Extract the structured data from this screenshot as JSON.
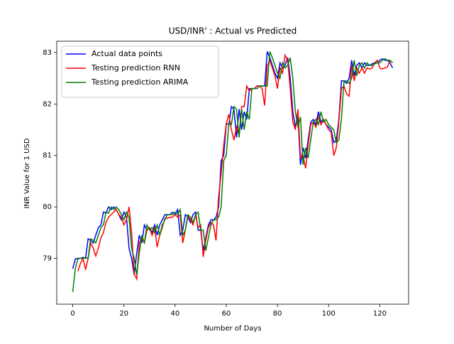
{
  "chart_data": {
    "type": "line",
    "title": "USD/INR' : Actual vs Predicted",
    "x_label": "Number of Days",
    "y_label": "INR Value for 1 USD",
    "x": [
      0,
      1,
      2,
      3,
      4,
      5,
      6,
      7,
      8,
      9,
      10,
      11,
      12,
      13,
      14,
      15,
      16,
      17,
      18,
      19,
      20,
      21,
      22,
      23,
      24,
      25,
      26,
      27,
      28,
      29,
      30,
      31,
      32,
      33,
      34,
      35,
      36,
      37,
      38,
      39,
      40,
      41,
      42,
      43,
      44,
      45,
      46,
      47,
      48,
      49,
      50,
      51,
      52,
      53,
      54,
      55,
      56,
      57,
      58,
      59,
      60,
      61,
      62,
      63,
      64,
      65,
      66,
      67,
      68,
      69,
      70,
      71,
      72,
      73,
      74,
      75,
      76,
      77,
      78,
      79,
      80,
      81,
      82,
      83,
      84,
      85,
      86,
      87,
      88,
      89,
      90,
      91,
      92,
      93,
      94,
      95,
      96,
      97,
      98,
      99,
      100,
      101,
      102,
      103,
      104,
      105,
      106,
      107,
      108,
      109,
      110,
      111,
      112,
      113,
      114,
      115,
      116,
      117,
      118,
      119,
      120,
      121,
      122,
      123,
      124,
      125
    ],
    "series": [
      {
        "name": "Actual data points",
        "color": "#0000ff",
        "values": [
          78.8,
          78.99,
          79.0,
          79.0,
          79.02,
          79.0,
          79.38,
          79.35,
          79.3,
          79.45,
          79.6,
          79.65,
          79.9,
          79.88,
          80.0,
          79.95,
          80.0,
          79.95,
          79.85,
          79.75,
          79.9,
          79.8,
          79.2,
          79.0,
          78.68,
          79.1,
          79.45,
          79.3,
          79.65,
          79.55,
          79.6,
          79.5,
          79.65,
          79.45,
          79.65,
          79.75,
          79.85,
          79.85,
          79.85,
          79.9,
          79.85,
          79.95,
          79.45,
          79.55,
          79.85,
          79.8,
          79.7,
          79.85,
          79.9,
          79.55,
          79.55,
          79.15,
          79.4,
          79.65,
          79.75,
          79.75,
          79.8,
          80.0,
          80.9,
          81.0,
          81.62,
          81.6,
          81.95,
          81.9,
          81.35,
          81.9,
          81.5,
          81.85,
          81.7,
          82.3,
          82.3,
          82.3,
          82.35,
          82.35,
          82.35,
          82.35,
          83.02,
          82.9,
          82.75,
          82.6,
          82.5,
          82.8,
          82.7,
          82.75,
          82.9,
          82.5,
          81.85,
          81.55,
          81.75,
          80.82,
          81.15,
          80.95,
          81.3,
          81.65,
          81.7,
          81.6,
          81.85,
          81.65,
          81.7,
          81.6,
          81.55,
          81.5,
          81.25,
          81.3,
          81.7,
          82.45,
          82.45,
          82.4,
          82.5,
          82.85,
          82.55,
          82.75,
          82.8,
          82.7,
          82.8,
          82.75,
          82.75,
          82.78,
          82.8,
          82.8,
          82.85,
          82.88,
          82.85,
          82.85,
          82.8,
          82.7
        ]
      },
      {
        "name": "Testing prediction RNN",
        "color": "#ff0000",
        "values": [
          null,
          null,
          78.75,
          78.9,
          79.0,
          78.78,
          79.0,
          79.3,
          79.2,
          79.05,
          79.2,
          79.4,
          79.5,
          79.7,
          79.8,
          79.85,
          79.9,
          79.95,
          79.85,
          79.8,
          79.65,
          79.75,
          80.0,
          79.5,
          78.7,
          78.6,
          79.3,
          79.4,
          79.3,
          79.55,
          79.6,
          79.45,
          79.6,
          79.22,
          79.45,
          79.6,
          79.78,
          79.78,
          79.8,
          79.8,
          79.85,
          79.8,
          79.85,
          79.3,
          79.55,
          79.82,
          79.75,
          79.65,
          79.85,
          79.6,
          79.65,
          79.03,
          79.35,
          79.6,
          79.7,
          79.65,
          79.35,
          80.2,
          80.65,
          81.2,
          81.62,
          81.8,
          81.5,
          81.3,
          81.55,
          81.4,
          81.95,
          81.95,
          82.35,
          82.25,
          82.3,
          82.3,
          82.35,
          82.35,
          82.3,
          81.97,
          82.75,
          82.85,
          82.7,
          82.55,
          82.3,
          82.7,
          82.6,
          82.95,
          82.85,
          82.3,
          81.65,
          81.5,
          81.9,
          80.95,
          81.0,
          80.75,
          81.2,
          81.6,
          81.65,
          81.55,
          81.75,
          81.6,
          81.7,
          81.6,
          81.5,
          81.45,
          81.0,
          81.15,
          81.65,
          82.3,
          82.35,
          82.2,
          82.15,
          82.75,
          82.45,
          82.7,
          82.6,
          82.7,
          82.6,
          82.7,
          82.68,
          82.7,
          82.8,
          82.85,
          82.7,
          82.68,
          82.7,
          82.72,
          82.85,
          null
        ]
      },
      {
        "name": "Testing prediction ARIMA",
        "color": "#008000",
        "values": [
          78.35,
          78.8,
          78.99,
          79.0,
          79.0,
          79.02,
          79.0,
          79.38,
          79.35,
          79.3,
          79.45,
          79.6,
          79.65,
          79.9,
          79.88,
          80.0,
          79.95,
          80.0,
          79.95,
          79.85,
          79.75,
          79.9,
          79.8,
          79.2,
          79.0,
          78.68,
          79.1,
          79.45,
          79.3,
          79.65,
          79.55,
          79.6,
          79.5,
          79.65,
          79.45,
          79.65,
          79.75,
          79.85,
          79.85,
          79.85,
          79.9,
          79.85,
          79.95,
          79.45,
          79.55,
          79.85,
          79.8,
          79.7,
          79.85,
          79.9,
          79.55,
          79.55,
          79.15,
          79.4,
          79.65,
          79.75,
          79.75,
          79.8,
          80.0,
          80.9,
          81.0,
          81.62,
          81.6,
          81.95,
          81.9,
          81.35,
          81.9,
          81.5,
          81.85,
          81.7,
          82.3,
          82.3,
          82.3,
          82.35,
          82.35,
          82.35,
          82.35,
          83.02,
          82.9,
          82.75,
          82.6,
          82.5,
          82.8,
          82.7,
          82.75,
          82.9,
          82.5,
          81.85,
          81.55,
          81.75,
          80.82,
          81.15,
          80.95,
          81.3,
          81.65,
          81.7,
          81.6,
          81.85,
          81.65,
          81.7,
          81.6,
          81.55,
          81.5,
          81.25,
          81.3,
          81.7,
          82.45,
          82.45,
          82.4,
          82.5,
          82.85,
          82.55,
          82.75,
          82.8,
          82.7,
          82.8,
          82.75,
          82.75,
          82.78,
          82.8,
          82.8,
          82.85,
          82.88,
          82.85,
          82.85,
          82.8
        ]
      }
    ],
    "xlim": [
      -6.25,
      131.25
    ],
    "ylim": [
      78.11,
      83.22
    ],
    "xticks": [
      0,
      20,
      40,
      60,
      80,
      100,
      120
    ],
    "yticks": [
      79,
      80,
      81,
      82,
      83
    ],
    "legend": "upper left"
  }
}
